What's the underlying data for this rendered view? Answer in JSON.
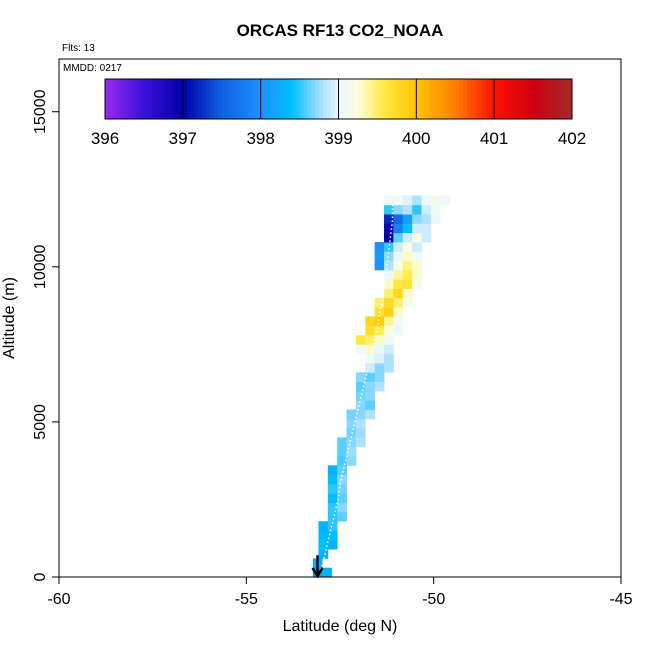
{
  "chart_data": {
    "type": "heatmap",
    "title": "ORCAS RF13 CO2_NOAA",
    "flights_label": "Flts: 13",
    "date_label": "MMDD: 0217",
    "xlabel": "Latitude (deg N)",
    "ylabel": "Altitude (m)",
    "xlim": [
      -60,
      -45
    ],
    "ylim": [
      0,
      16700
    ],
    "x_ticks": [
      -60,
      -55,
      -50,
      -45
    ],
    "y_ticks": [
      0,
      5000,
      10000,
      15000
    ],
    "colorbar": {
      "min": 396,
      "max": 402,
      "ticks": [
        396,
        397,
        398,
        399,
        400,
        401,
        402
      ],
      "stops": [
        {
          "v": 396.0,
          "c": "#9a2bf0"
        },
        {
          "v": 396.5,
          "c": "#3a10d8"
        },
        {
          "v": 397.0,
          "c": "#0000a8"
        },
        {
          "v": 397.5,
          "c": "#1060e0"
        },
        {
          "v": 398.0,
          "c": "#1e90ff"
        },
        {
          "v": 398.4,
          "c": "#00bfff"
        },
        {
          "v": 398.75,
          "c": "#9fdcff"
        },
        {
          "v": 399.0,
          "c": "#eaf8ff"
        },
        {
          "v": 399.25,
          "c": "#fbfde0"
        },
        {
          "v": 399.6,
          "c": "#ffe93e"
        },
        {
          "v": 400.0,
          "c": "#ffc400"
        },
        {
          "v": 400.5,
          "c": "#ff7e00"
        },
        {
          "v": 401.0,
          "c": "#ff1000"
        },
        {
          "v": 401.5,
          "c": "#d00012"
        },
        {
          "v": 402.0,
          "c": "#a52a2a"
        }
      ]
    },
    "bin_size": {
      "lat_deg": 0.25,
      "alt_m": 300
    },
    "cells": [
      [
        -53.1,
        150,
        398.0
      ],
      [
        -52.85,
        150,
        398.3
      ],
      [
        -53.1,
        450,
        398.2
      ],
      [
        -52.95,
        750,
        398.3
      ],
      [
        -52.95,
        1050,
        398.4
      ],
      [
        -52.7,
        1050,
        398.3
      ],
      [
        -52.95,
        1350,
        398.35
      ],
      [
        -52.7,
        1350,
        398.4
      ],
      [
        -52.95,
        1650,
        398.3
      ],
      [
        -52.7,
        1650,
        398.5
      ],
      [
        -52.7,
        1950,
        398.5
      ],
      [
        -52.45,
        1950,
        398.6
      ],
      [
        -52.7,
        2250,
        398.5
      ],
      [
        -52.45,
        2250,
        398.7
      ],
      [
        -52.7,
        2550,
        398.4
      ],
      [
        -52.45,
        2550,
        398.6
      ],
      [
        -52.7,
        2850,
        398.5
      ],
      [
        -52.45,
        2850,
        398.65
      ],
      [
        -52.7,
        3150,
        398.4
      ],
      [
        -52.45,
        3150,
        398.7
      ],
      [
        -52.7,
        3450,
        398.3
      ],
      [
        -52.45,
        3450,
        398.6
      ],
      [
        -52.45,
        3750,
        398.55
      ],
      [
        -52.2,
        3750,
        398.7
      ],
      [
        -52.45,
        4050,
        398.6
      ],
      [
        -52.2,
        4050,
        398.75
      ],
      [
        -52.45,
        4350,
        398.6
      ],
      [
        -52.2,
        4350,
        398.7
      ],
      [
        -51.95,
        4350,
        398.8
      ],
      [
        -52.2,
        4650,
        398.65
      ],
      [
        -51.95,
        4650,
        398.75
      ],
      [
        -52.2,
        4950,
        398.7
      ],
      [
        -51.95,
        4950,
        398.8
      ],
      [
        -52.2,
        5250,
        398.65
      ],
      [
        -51.95,
        5250,
        398.7
      ],
      [
        -51.7,
        5250,
        398.8
      ],
      [
        -51.95,
        5550,
        398.7
      ],
      [
        -51.7,
        5550,
        398.6
      ],
      [
        -51.95,
        5850,
        398.65
      ],
      [
        -51.7,
        5850,
        398.7
      ],
      [
        -51.95,
        6150,
        398.6
      ],
      [
        -51.7,
        6150,
        398.7
      ],
      [
        -51.45,
        6150,
        398.8
      ],
      [
        -51.95,
        6450,
        398.7
      ],
      [
        -51.7,
        6450,
        398.6
      ],
      [
        -51.45,
        6450,
        398.7
      ],
      [
        -51.7,
        6750,
        398.9
      ],
      [
        -51.45,
        6750,
        398.7
      ],
      [
        -51.2,
        6750,
        398.8
      ],
      [
        -51.7,
        7050,
        399.1
      ],
      [
        -51.45,
        7050,
        398.95
      ],
      [
        -51.2,
        7050,
        398.8
      ],
      [
        -51.95,
        7350,
        399.1
      ],
      [
        -51.7,
        7350,
        399.3
      ],
      [
        -51.45,
        7350,
        399.0
      ],
      [
        -51.2,
        7350,
        398.9
      ],
      [
        -51.95,
        7650,
        399.6
      ],
      [
        -51.7,
        7650,
        399.5
      ],
      [
        -51.45,
        7650,
        399.3
      ],
      [
        -51.2,
        7650,
        399.1
      ],
      [
        -51.7,
        7950,
        399.7
      ],
      [
        -51.45,
        7950,
        399.55
      ],
      [
        -51.2,
        7950,
        399.25
      ],
      [
        -50.95,
        7950,
        399.0
      ],
      [
        -51.7,
        8250,
        399.8
      ],
      [
        -51.45,
        8250,
        399.9
      ],
      [
        -51.2,
        8250,
        399.4
      ],
      [
        -50.95,
        8250,
        399.1
      ],
      [
        -51.45,
        8550,
        399.7
      ],
      [
        -51.2,
        8550,
        399.85
      ],
      [
        -50.95,
        8550,
        399.3
      ],
      [
        -51.45,
        8850,
        399.5
      ],
      [
        -51.2,
        8850,
        399.75
      ],
      [
        -50.95,
        8850,
        399.5
      ],
      [
        -50.7,
        8850,
        399.2
      ],
      [
        -51.2,
        9150,
        399.5
      ],
      [
        -50.95,
        9150,
        399.8
      ],
      [
        -50.7,
        9150,
        399.3
      ],
      [
        -51.2,
        9450,
        399.3
      ],
      [
        -50.95,
        9450,
        399.6
      ],
      [
        -50.7,
        9450,
        399.65
      ],
      [
        -50.45,
        9450,
        399.2
      ],
      [
        -51.2,
        9750,
        399.0
      ],
      [
        -50.95,
        9750,
        399.4
      ],
      [
        -50.7,
        9750,
        399.55
      ],
      [
        -50.45,
        9750,
        399.3
      ],
      [
        -51.45,
        10050,
        398.0
      ],
      [
        -51.2,
        10050,
        398.8
      ],
      [
        -50.95,
        10050,
        399.2
      ],
      [
        -50.7,
        10050,
        399.45
      ],
      [
        -50.45,
        10050,
        399.3
      ],
      [
        -51.45,
        10350,
        398.1
      ],
      [
        -51.2,
        10350,
        398.7
      ],
      [
        -50.95,
        10350,
        399.0
      ],
      [
        -50.7,
        10350,
        399.3
      ],
      [
        -50.45,
        10350,
        399.1
      ],
      [
        -51.45,
        10650,
        398.0
      ],
      [
        -51.2,
        10650,
        398.5
      ],
      [
        -50.95,
        10650,
        398.9
      ],
      [
        -50.7,
        10650,
        399.25
      ],
      [
        -50.45,
        10650,
        398.9
      ],
      [
        -51.2,
        10950,
        397.0
      ],
      [
        -50.95,
        10950,
        398.6
      ],
      [
        -50.7,
        10950,
        398.9
      ],
      [
        -50.45,
        10950,
        399.2
      ],
      [
        -50.2,
        10950,
        398.9
      ],
      [
        -51.2,
        11250,
        396.9
      ],
      [
        -50.95,
        11250,
        397.8
      ],
      [
        -50.7,
        11250,
        398.4
      ],
      [
        -50.45,
        11250,
        398.9
      ],
      [
        -50.2,
        11250,
        398.9
      ],
      [
        -51.2,
        11550,
        397.2
      ],
      [
        -50.95,
        11550,
        397.6
      ],
      [
        -50.7,
        11550,
        398.1
      ],
      [
        -50.45,
        11550,
        398.7
      ],
      [
        -50.2,
        11550,
        398.8
      ],
      [
        -49.95,
        11550,
        399.0
      ],
      [
        -51.2,
        11850,
        398.5
      ],
      [
        -50.95,
        11850,
        398.7
      ],
      [
        -50.7,
        11850,
        398.8
      ],
      [
        -50.45,
        11850,
        398.5
      ],
      [
        -50.2,
        11850,
        398.9
      ],
      [
        -49.95,
        11850,
        399.1
      ],
      [
        -51.2,
        12150,
        399.0
      ],
      [
        -50.95,
        12150,
        399.1
      ],
      [
        -50.7,
        12150,
        398.95
      ],
      [
        -50.45,
        12150,
        398.8
      ],
      [
        -50.2,
        12150,
        399.0
      ],
      [
        -49.95,
        12150,
        399.15
      ],
      [
        -49.7,
        12150,
        399.05
      ]
    ],
    "flight_track": [
      [
        -53.05,
        100
      ],
      [
        -52.95,
        500
      ],
      [
        -52.85,
        1000
      ],
      [
        -52.75,
        1500
      ],
      [
        -52.65,
        2000
      ],
      [
        -52.55,
        2500
      ],
      [
        -52.5,
        3000
      ],
      [
        -52.4,
        3500
      ],
      [
        -52.3,
        4000
      ],
      [
        -52.2,
        4500
      ],
      [
        -52.1,
        5000
      ],
      [
        -52.0,
        5500
      ],
      [
        -51.9,
        6000
      ],
      [
        -51.8,
        6500
      ],
      [
        -51.7,
        7000
      ],
      [
        -51.6,
        7500
      ],
      [
        -51.5,
        8000
      ],
      [
        -51.45,
        8500
      ],
      [
        -51.35,
        9000
      ],
      [
        -51.3,
        9500
      ],
      [
        -51.25,
        10000
      ],
      [
        -51.2,
        10500
      ],
      [
        -51.15,
        11000
      ],
      [
        -51.1,
        11500
      ],
      [
        -51.1,
        12000
      ]
    ],
    "takeoff_marker": {
      "lat": -53.1,
      "alt_top": 700,
      "alt_bottom": 0
    }
  }
}
